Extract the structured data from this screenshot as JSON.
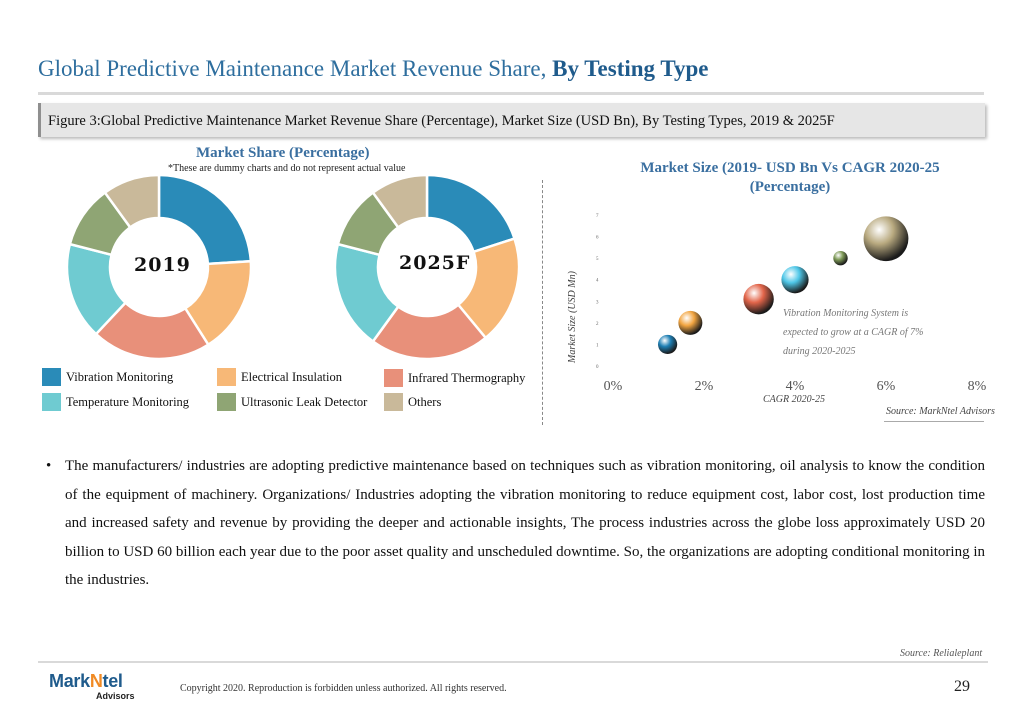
{
  "header": {
    "title_regular": "Global Predictive Maintenance Market Revenue Share,",
    "title_bold": "By Testing Type",
    "figure_caption": "Figure 3:Global Predictive Maintenance Market Revenue Share (Percentage), Market Size (USD Bn), By Testing Types, 2019 & 2025F"
  },
  "market_share": {
    "heading": "Market Share (Percentage)",
    "note": "*These are dummy charts and do not represent actual value"
  },
  "legend": [
    {
      "label": "Vibration Monitoring",
      "color": "#2a8bb8"
    },
    {
      "label": "Electrical Insulation",
      "color": "#f7b877"
    },
    {
      "label": "Infrared Thermography",
      "color": "#e8907a"
    },
    {
      "label": "Temperature Monitoring",
      "color": "#6fcbd1"
    },
    {
      "label": "Ultrasonic Leak Detector",
      "color": "#8fa574"
    },
    {
      "label": "Others",
      "color": "#c9b99a"
    }
  ],
  "chart_data": [
    {
      "type": "pie",
      "style": "donut",
      "title": "2019",
      "categories": [
        "Vibration Monitoring",
        "Electrical Insulation",
        "Infrared Thermography",
        "Temperature Monitoring",
        "Ultrasonic Leak Detector",
        "Others"
      ],
      "values": [
        24,
        17,
        21,
        17,
        11,
        10
      ]
    },
    {
      "type": "pie",
      "style": "donut",
      "title": "2025F",
      "categories": [
        "Vibration Monitoring",
        "Electrical Insulation",
        "Infrared Thermography",
        "Temperature Monitoring",
        "Ultrasonic Leak Detector",
        "Others"
      ],
      "values": [
        20,
        19,
        21,
        19,
        11,
        10
      ]
    },
    {
      "type": "scatter",
      "subtype": "bubble",
      "title": "Market Size (2019- USD Bn Vs CAGR 2020-25 (Percentage)",
      "xlabel": "CAGR 2020-25",
      "ylabel": "Market Size (USD Mn)",
      "xlim": [
        0,
        8
      ],
      "ylim": [
        0,
        7
      ],
      "x_ticks": [
        "0%",
        "2%",
        "4%",
        "6%",
        "8%"
      ],
      "y_ticks": [
        "0",
        "1",
        "2",
        "3",
        "4",
        "5",
        "6",
        "7"
      ],
      "points": [
        {
          "x": 1.2,
          "y": 1.0,
          "size": 1.2,
          "color": "#1e7fb4"
        },
        {
          "x": 1.7,
          "y": 2.0,
          "size": 1.5,
          "color": "#f2a541"
        },
        {
          "x": 3.2,
          "y": 3.1,
          "size": 1.9,
          "color": "#e2654a"
        },
        {
          "x": 4.0,
          "y": 4.0,
          "size": 1.7,
          "color": "#4ec7e8"
        },
        {
          "x": 5.0,
          "y": 5.0,
          "size": 0.9,
          "color": "#7e9a57"
        },
        {
          "x": 6.0,
          "y": 5.9,
          "size": 2.8,
          "color": "#b9aa80"
        }
      ],
      "annotation": "Vibration Monitoring System is expected to grow at a CAGR of 7% during 2020-2025"
    }
  ],
  "annotation_lines": [
    "Vibration Monitoring System is",
    "expected to grow at a CAGR of 7%",
    "during 2020-2025"
  ],
  "source_chart": "Source: MarkNtel Advisors",
  "bullet": "The manufacturers/ industries are adopting predictive maintenance based on techniques such as vibration monitoring, oil analysis to know the condition of the equipment of machinery. Organizations/ Industries adopting the vibration monitoring to reduce equipment cost, labor cost, lost production time and increased safety and revenue by providing the deeper and actionable insights, The process industries across the globe loss approximately USD 20 billion to USD 60 billion each year due to the poor asset quality and unscheduled downtime. So, the organizations are adopting conditional monitoring in the industries.",
  "source_text": "Source: Relialeplant",
  "footer": {
    "logo_main": "MarkNtel",
    "logo_sub": "Advisors",
    "copyright": "Copyright 2020. Reproduction is forbidden unless authorized. All rights reserved.",
    "page_number": "29"
  }
}
